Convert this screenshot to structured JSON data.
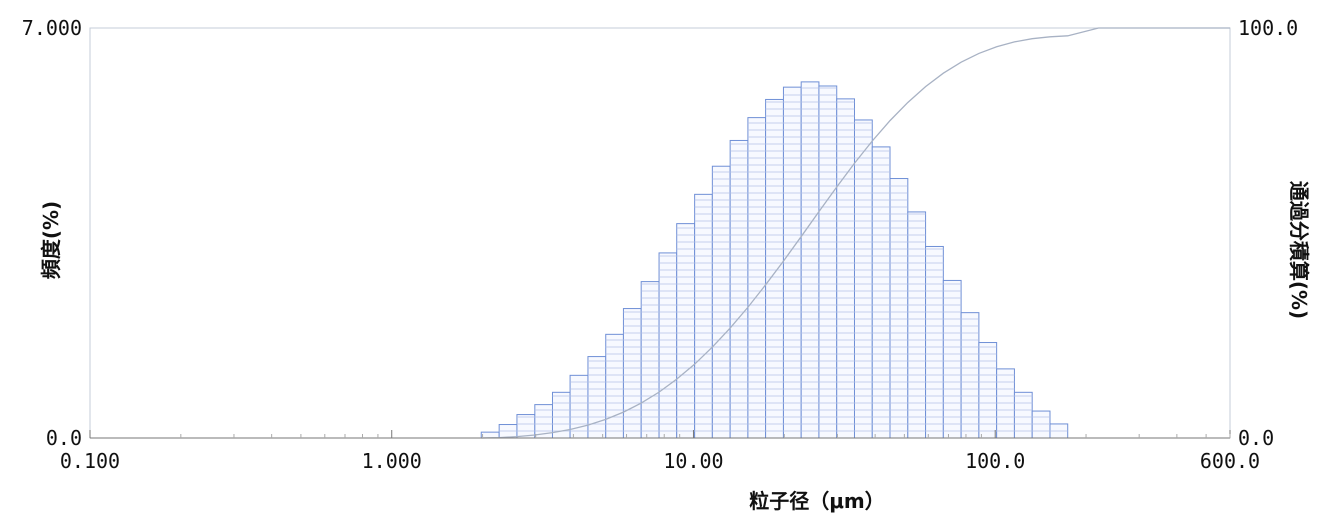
{
  "chart_data": {
    "type": "bar",
    "x_scale": "log",
    "xlim": [
      0.1,
      600
    ],
    "y_left_lim": [
      0,
      7
    ],
    "y_right_lim": [
      0,
      100
    ],
    "grid": false,
    "legend": "none",
    "xlabel": "粒子径（μm）",
    "ylabel_left": "頻度(%)",
    "ylabel_right": "通過分積算(%)",
    "x_ticks": [
      {
        "value": 0.1,
        "label": "0.100"
      },
      {
        "value": 1,
        "label": "1.000"
      },
      {
        "value": 10,
        "label": "10.00"
      },
      {
        "value": 100,
        "label": "100.0"
      },
      {
        "value": 600,
        "label": "600.0"
      }
    ],
    "y_left_ticks": [
      {
        "value": 0,
        "label": "0.0"
      },
      {
        "value": 7,
        "label": "7.000"
      }
    ],
    "y_right_ticks": [
      {
        "value": 0,
        "label": "0.0"
      },
      {
        "value": 100,
        "label": "100.0"
      }
    ],
    "bin_edges": [
      1.98,
      2.27,
      2.6,
      2.98,
      3.41,
      3.9,
      4.47,
      5.12,
      5.86,
      6.71,
      7.69,
      8.8,
      10.09,
      11.55,
      13.23,
      15.15,
      17.34,
      19.87,
      22.75,
      26.05,
      29.84,
      34.17,
      39.13,
      44.81,
      51.33,
      58.78,
      67.31,
      77.09,
      88.29,
      101.1,
      115.8,
      132.6,
      151.9,
      173.9
    ],
    "frequency": [
      0.1,
      0.23,
      0.4,
      0.57,
      0.78,
      1.07,
      1.39,
      1.77,
      2.21,
      2.67,
      3.16,
      3.66,
      4.16,
      4.64,
      5.08,
      5.47,
      5.78,
      5.99,
      6.08,
      6.01,
      5.79,
      5.43,
      4.97,
      4.43,
      3.86,
      3.27,
      2.69,
      2.14,
      1.63,
      1.18,
      0.78,
      0.46,
      0.24
    ],
    "cumulative": [
      0.1,
      0.33,
      0.73,
      1.3,
      2.08,
      3.15,
      4.54,
      6.31,
      8.52,
      11.19,
      14.35,
      18.01,
      22.17,
      26.81,
      31.89,
      37.36,
      43.14,
      49.13,
      55.21,
      61.22,
      67.01,
      72.44,
      77.41,
      81.84,
      85.7,
      88.97,
      91.66,
      93.8,
      95.43,
      96.61,
      97.39,
      97.85,
      98.09
    ],
    "colors": {
      "bars": "#6f8fd6",
      "cumulative_line": "#a8b2c4",
      "frame": "#c4ccd8"
    }
  }
}
